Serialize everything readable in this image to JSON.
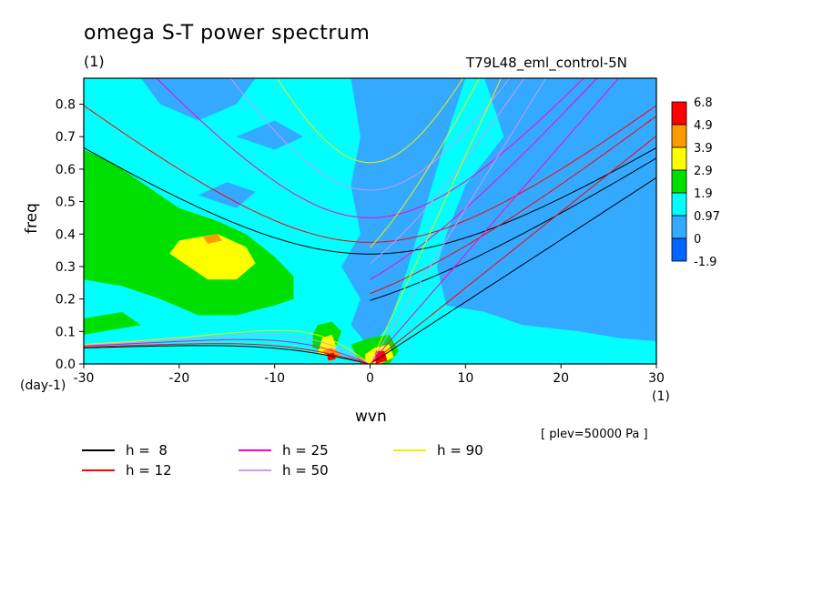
{
  "chart_data": {
    "type": "heatmap",
    "title": "omega S-T power spectrum",
    "units_label": "(1)",
    "run_label": "T79L48_eml_control-5N",
    "xlabel": "wvn",
    "ylabel": "freq",
    "y_units": "(day-1)",
    "x_units": "(1)",
    "level_note": "[ plev=50000 Pa ]",
    "xlim": [
      -30,
      30
    ],
    "ylim": [
      0,
      0.88
    ],
    "x_ticks": [
      -30,
      -20,
      -10,
      0,
      10,
      20,
      30
    ],
    "y_ticks": [
      0.0,
      0.1,
      0.2,
      0.3,
      0.4,
      0.5,
      0.6,
      0.7,
      0.8
    ],
    "x_tick_labels": [
      "-30",
      "-20",
      "-10",
      "0",
      "10",
      "20",
      "30"
    ],
    "y_tick_labels": [
      "0.0",
      "0.1",
      "0.2",
      "0.3",
      "0.4",
      "0.5",
      "0.6",
      "0.7",
      "0.8"
    ],
    "colorbar": {
      "levels": [
        "6.8",
        "4.9",
        "3.9",
        "2.9",
        "1.9",
        "0.97",
        "0",
        "-1.9"
      ],
      "colors": [
        "#ff0000",
        "#ff9900",
        "#ffff00",
        "#00e000",
        "#00ffff",
        "#33aaff",
        "#0066ff"
      ]
    },
    "dispersion_legend": [
      {
        "label": "h =  8",
        "color": "#000000"
      },
      {
        "label": "h = 12",
        "color": "#ff0000"
      },
      {
        "label": "h = 25",
        "color": "#ff00cc"
      },
      {
        "label": "h = 50",
        "color": "#cc99ff"
      },
      {
        "label": "h = 90",
        "color": "#eeee00"
      }
    ],
    "equivalent_depths_m": [
      8,
      12,
      25,
      50,
      90
    ]
  }
}
